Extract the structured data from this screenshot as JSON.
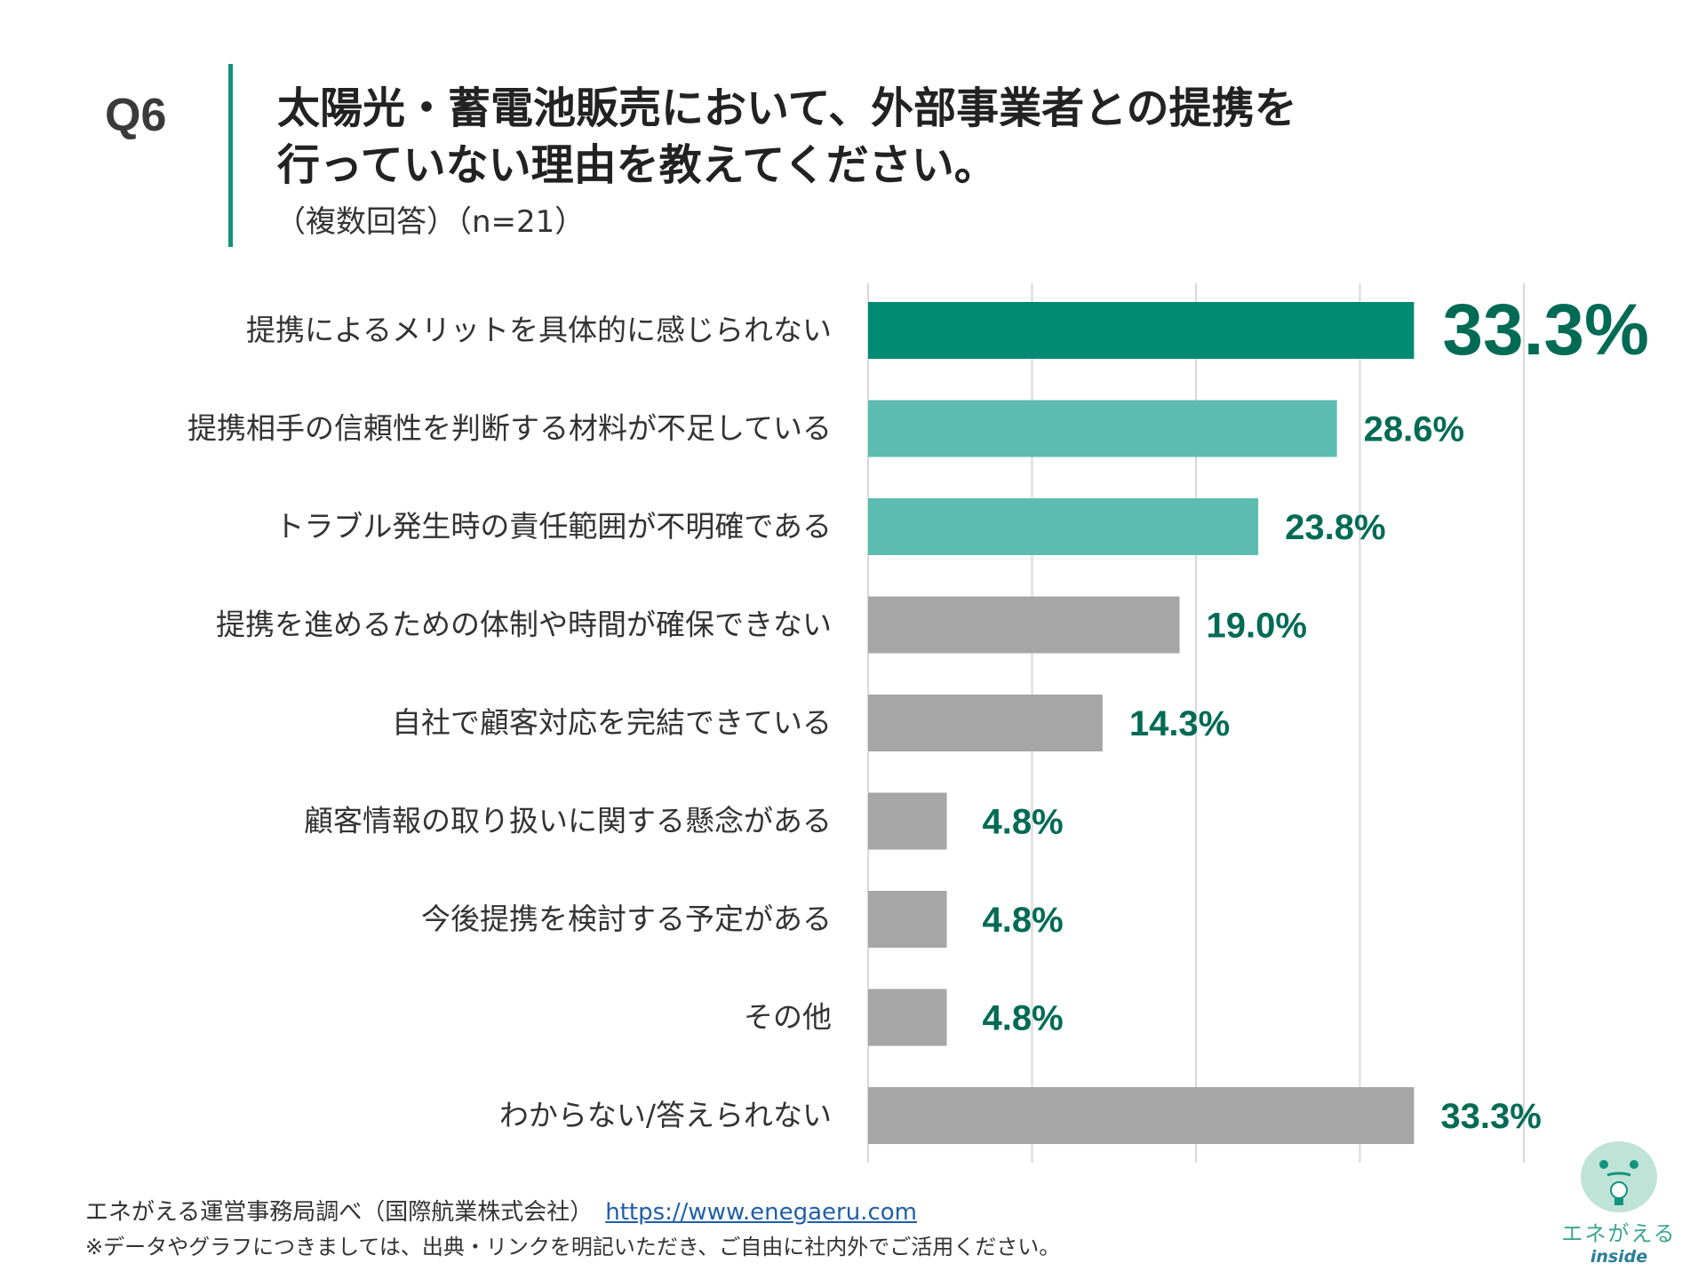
{
  "header": {
    "question_number": "Q6",
    "title_line1": "太陽光・蓄電池販売において、外部事業者との提携を",
    "title_line2": "行っていない理由を教えてください。",
    "subtitle": "（複数回答）（n=21）"
  },
  "chart_data": {
    "type": "bar",
    "orientation": "horizontal",
    "categories": [
      "提携によるメリットを具体的に感じられない",
      "提携相手の信頼性を判断する材料が不足している",
      "トラブル発生時の責任範囲が不明確である",
      "提携を進めるための体制や時間が確保できない",
      "自社で顧客対応を完結できている",
      "顧客情報の取り扱いに関する懸念がある",
      "今後提携を検討する予定がある",
      "その他",
      "わからない/答えられない"
    ],
    "values": [
      33.3,
      28.6,
      23.8,
      19.0,
      14.3,
      4.8,
      4.8,
      4.8,
      33.3
    ],
    "data_labels": [
      "33.3%",
      "28.6%",
      "23.8%",
      "19.0%",
      "14.3%",
      "4.8%",
      "4.8%",
      "4.8%",
      "33.3%"
    ],
    "bar_colors": [
      "#008A74",
      "#5DBCB2",
      "#5DBCB2",
      "#A6A6A6",
      "#A6A6A6",
      "#A6A6A6",
      "#A6A6A6",
      "#A6A6A6",
      "#A6A6A6"
    ],
    "label_color": "#006B55",
    "xlim": [
      0,
      40
    ],
    "grid": true
  },
  "footer": {
    "source": "エネがえる運営事務局調べ（国際航業株式会社）",
    "url": "https://www.enegaeru.com",
    "note": "※データやグラフにつきましては、出典・リンクを明記いただき、ご自由に社内外でご活用ください。"
  },
  "logo": {
    "name": "エネがえる",
    "sub": "inside"
  }
}
